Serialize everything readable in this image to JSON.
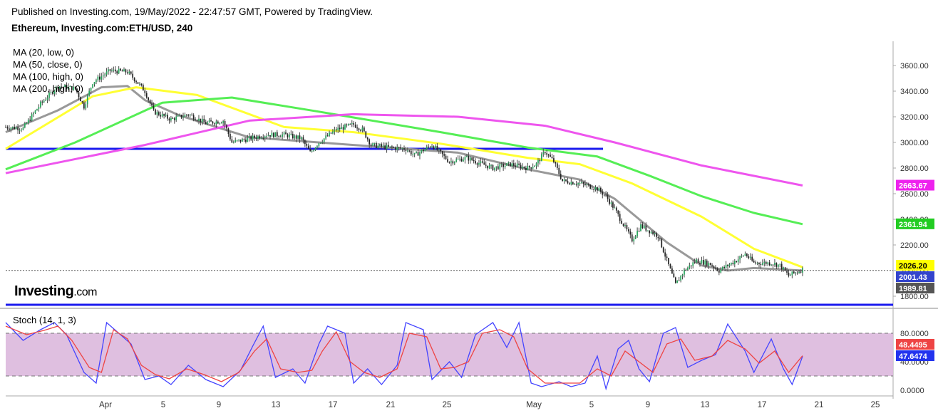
{
  "header": {
    "published": "Published on Investing.com, 19/May/2022 - 22:47:57 GMT, Powered by TradingView.",
    "symbol": "Ethereum, Investing.com:ETH/USD, 240"
  },
  "legend": [
    "MA (20, low, 0)",
    "MA (50, close, 0)",
    "MA (100, high, 0)",
    "MA (200, high, 0)"
  ],
  "brand": {
    "name": "Investing",
    "tld": ".com"
  },
  "colors": {
    "up": "#26a65b",
    "down": "#222222",
    "wick": "#444444",
    "ma20": "#999999",
    "ma50": "#ffff33",
    "ma100": "#55ee55",
    "ma200": "#ee55ee",
    "hline": "#1a1aee",
    "stoch_k": "#4444ff",
    "stoch_d": "#ee4444",
    "stoch_band": "#dbb8dd"
  },
  "stoch": {
    "label": "Stoch (14, 1, 3)",
    "yticks": [
      "80.0000",
      "40.0000",
      "0.0000"
    ],
    "k_last": "47.6474",
    "d_last": "48.4495"
  },
  "chart_data": {
    "type": "candlestick",
    "y_ticks": [
      "3600.00",
      "3400.00",
      "3200.00",
      "3000.00",
      "2800.00",
      "2600.00",
      "2400.00",
      "2200.00",
      "2000.00",
      "1800.00"
    ],
    "x_labels": [
      "Apr",
      "5",
      "9",
      "13",
      "17",
      "21",
      "25",
      "May",
      "5",
      "9",
      "13",
      "17",
      "21",
      "25"
    ],
    "price_tags": [
      {
        "label": "2663.67",
        "value": 2663.67,
        "color": "#ee22ee"
      },
      {
        "label": "2361.94",
        "value": 2361.94,
        "color": "#22cc22"
      },
      {
        "label": "2026.20",
        "value": 2026.2,
        "color": "#ffff00"
      },
      {
        "label": "2001.43",
        "value": 2001.43,
        "color": "#3344cc"
      },
      {
        "label": "1989.81",
        "value": 1989.81,
        "color": "#555555"
      }
    ],
    "current_price": 2001.43,
    "support_levels": [
      2950,
      1680
    ],
    "close_path": [
      [
        0,
        3120
      ],
      [
        10,
        3110
      ],
      [
        20,
        3300
      ],
      [
        30,
        3440
      ],
      [
        40,
        3420
      ],
      [
        45,
        3280
      ],
      [
        50,
        3470
      ],
      [
        60,
        3560
      ],
      [
        70,
        3550
      ],
      [
        75,
        3480
      ],
      [
        80,
        3400
      ],
      [
        85,
        3240
      ],
      [
        95,
        3180
      ],
      [
        105,
        3220
      ],
      [
        115,
        3150
      ],
      [
        125,
        3170
      ],
      [
        130,
        3000
      ],
      [
        140,
        3030
      ],
      [
        150,
        3060
      ],
      [
        160,
        3060
      ],
      [
        170,
        3030
      ],
      [
        175,
        2920
      ],
      [
        180,
        3000
      ],
      [
        190,
        3100
      ],
      [
        200,
        3140
      ],
      [
        205,
        3100
      ],
      [
        210,
        2980
      ],
      [
        220,
        2960
      ],
      [
        230,
        2950
      ],
      [
        235,
        2900
      ],
      [
        245,
        2980
      ],
      [
        255,
        2850
      ],
      [
        265,
        2880
      ],
      [
        272,
        2840
      ],
      [
        280,
        2800
      ],
      [
        290,
        2830
      ],
      [
        300,
        2800
      ],
      [
        305,
        2830
      ],
      [
        310,
        2930
      ],
      [
        315,
        2850
      ],
      [
        320,
        2700
      ],
      [
        330,
        2680
      ],
      [
        340,
        2640
      ],
      [
        345,
        2580
      ],
      [
        350,
        2480
      ],
      [
        360,
        2240
      ],
      [
        365,
        2350
      ],
      [
        375,
        2270
      ],
      [
        385,
        1890
      ],
      [
        390,
        2000
      ],
      [
        397,
        2080
      ],
      [
        405,
        2050
      ],
      [
        410,
        2000
      ],
      [
        420,
        2080
      ],
      [
        425,
        2130
      ],
      [
        430,
        2060
      ],
      [
        440,
        2060
      ],
      [
        445,
        2040
      ],
      [
        450,
        1960
      ],
      [
        458,
        2010
      ]
    ],
    "ma_series": [
      {
        "name": "MA (20, low, 0)",
        "color": "#999999",
        "points": [
          [
            0,
            3080
          ],
          [
            30,
            3250
          ],
          [
            55,
            3430
          ],
          [
            70,
            3440
          ],
          [
            80,
            3330
          ],
          [
            100,
            3210
          ],
          [
            140,
            3040
          ],
          [
            200,
            2980
          ],
          [
            260,
            2920
          ],
          [
            300,
            2790
          ],
          [
            330,
            2710
          ],
          [
            350,
            2560
          ],
          [
            380,
            2220
          ],
          [
            400,
            2040
          ],
          [
            415,
            2000
          ],
          [
            430,
            2020
          ],
          [
            458,
            2000
          ]
        ]
      },
      {
        "name": "MA (50, close, 0)",
        "color": "#ffff33",
        "points": [
          [
            0,
            2950
          ],
          [
            50,
            3360
          ],
          [
            75,
            3430
          ],
          [
            110,
            3370
          ],
          [
            160,
            3120
          ],
          [
            200,
            3080
          ],
          [
            250,
            2990
          ],
          [
            300,
            2880
          ],
          [
            330,
            2830
          ],
          [
            360,
            2680
          ],
          [
            400,
            2420
          ],
          [
            430,
            2170
          ],
          [
            458,
            2026
          ]
        ]
      },
      {
        "name": "MA (100, high, 0)",
        "color": "#55ee55",
        "points": [
          [
            0,
            2790
          ],
          [
            40,
            3000
          ],
          [
            90,
            3310
          ],
          [
            130,
            3350
          ],
          [
            180,
            3240
          ],
          [
            250,
            3080
          ],
          [
            300,
            2960
          ],
          [
            340,
            2890
          ],
          [
            370,
            2740
          ],
          [
            400,
            2580
          ],
          [
            430,
            2450
          ],
          [
            458,
            2362
          ]
        ]
      },
      {
        "name": "MA (200, high, 0)",
        "color": "#ee55ee",
        "points": [
          [
            0,
            2760
          ],
          [
            80,
            2980
          ],
          [
            140,
            3170
          ],
          [
            200,
            3220
          ],
          [
            260,
            3200
          ],
          [
            310,
            3130
          ],
          [
            350,
            3000
          ],
          [
            400,
            2820
          ],
          [
            458,
            2664
          ]
        ]
      }
    ],
    "stoch_k_path": [
      [
        0,
        95
      ],
      [
        10,
        70
      ],
      [
        20,
        85
      ],
      [
        28,
        95
      ],
      [
        35,
        78
      ],
      [
        45,
        25
      ],
      [
        52,
        10
      ],
      [
        58,
        95
      ],
      [
        65,
        80
      ],
      [
        72,
        65
      ],
      [
        80,
        15
      ],
      [
        88,
        20
      ],
      [
        95,
        8
      ],
      [
        105,
        35
      ],
      [
        115,
        15
      ],
      [
        125,
        5
      ],
      [
        135,
        28
      ],
      [
        142,
        62
      ],
      [
        148,
        90
      ],
      [
        155,
        18
      ],
      [
        165,
        30
      ],
      [
        172,
        10
      ],
      [
        180,
        65
      ],
      [
        185,
        90
      ],
      [
        195,
        80
      ],
      [
        200,
        10
      ],
      [
        208,
        30
      ],
      [
        216,
        8
      ],
      [
        225,
        35
      ],
      [
        230,
        95
      ],
      [
        240,
        85
      ],
      [
        245,
        15
      ],
      [
        255,
        40
      ],
      [
        262,
        18
      ],
      [
        270,
        78
      ],
      [
        280,
        95
      ],
      [
        288,
        60
      ],
      [
        295,
        95
      ],
      [
        302,
        10
      ],
      [
        308,
        5
      ],
      [
        318,
        12
      ],
      [
        325,
        5
      ],
      [
        333,
        10
      ],
      [
        340,
        48
      ],
      [
        345,
        2
      ],
      [
        352,
        58
      ],
      [
        358,
        70
      ],
      [
        364,
        30
      ],
      [
        370,
        12
      ],
      [
        378,
        80
      ],
      [
        385,
        88
      ],
      [
        392,
        32
      ],
      [
        400,
        42
      ],
      [
        408,
        50
      ],
      [
        415,
        93
      ],
      [
        425,
        55
      ],
      [
        430,
        25
      ],
      [
        440,
        72
      ],
      [
        447,
        30
      ],
      [
        452,
        8
      ],
      [
        458,
        47.6
      ]
    ],
    "stoch_d_path": [
      [
        0,
        90
      ],
      [
        12,
        78
      ],
      [
        22,
        84
      ],
      [
        30,
        90
      ],
      [
        38,
        70
      ],
      [
        48,
        32
      ],
      [
        55,
        25
      ],
      [
        62,
        85
      ],
      [
        70,
        72
      ],
      [
        78,
        35
      ],
      [
        86,
        22
      ],
      [
        94,
        16
      ],
      [
        104,
        30
      ],
      [
        114,
        22
      ],
      [
        124,
        12
      ],
      [
        134,
        25
      ],
      [
        143,
        55
      ],
      [
        150,
        72
      ],
      [
        158,
        30
      ],
      [
        168,
        25
      ],
      [
        176,
        28
      ],
      [
        182,
        55
      ],
      [
        190,
        82
      ],
      [
        198,
        40
      ],
      [
        206,
        25
      ],
      [
        215,
        18
      ],
      [
        225,
        30
      ],
      [
        232,
        80
      ],
      [
        242,
        75
      ],
      [
        250,
        30
      ],
      [
        258,
        32
      ],
      [
        266,
        40
      ],
      [
        274,
        80
      ],
      [
        284,
        85
      ],
      [
        292,
        75
      ],
      [
        300,
        30
      ],
      [
        310,
        10
      ],
      [
        320,
        10
      ],
      [
        330,
        10
      ],
      [
        340,
        30
      ],
      [
        348,
        20
      ],
      [
        356,
        55
      ],
      [
        364,
        40
      ],
      [
        372,
        25
      ],
      [
        380,
        65
      ],
      [
        388,
        72
      ],
      [
        396,
        42
      ],
      [
        406,
        48
      ],
      [
        415,
        70
      ],
      [
        425,
        58
      ],
      [
        433,
        38
      ],
      [
        442,
        55
      ],
      [
        450,
        25
      ],
      [
        458,
        48.4
      ]
    ],
    "ylim": [
      1680,
      3760
    ],
    "stoch_ylim": [
      0,
      100
    ]
  }
}
